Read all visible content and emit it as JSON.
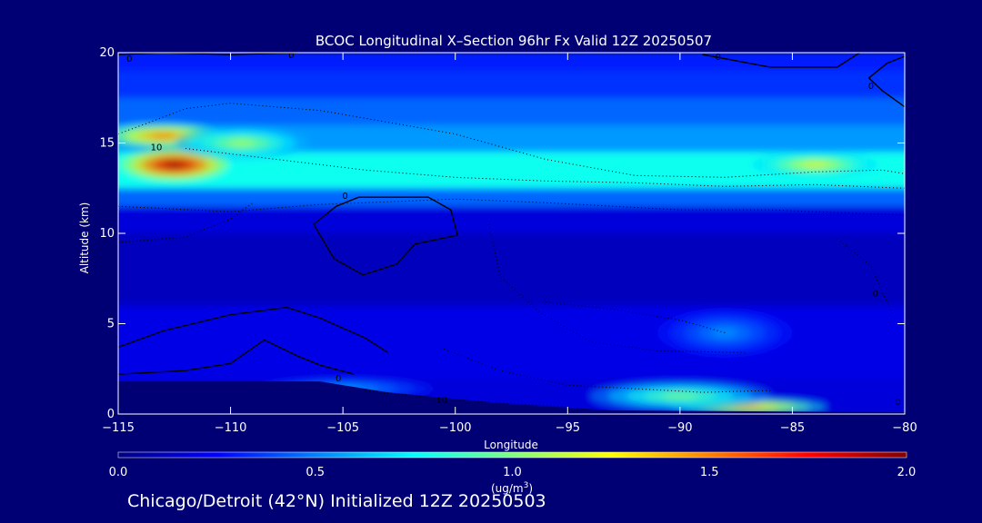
{
  "chart_data": {
    "type": "heatmap",
    "title": "BCOC Longitudinal X–Section 96hr  Fx Valid 12Z 20250507",
    "xlabel": "Longitude",
    "ylabel": "Altitude (km)",
    "xlim": [
      -115,
      -80
    ],
    "ylim": [
      0,
      20
    ],
    "x_ticks": [
      -115,
      -110,
      -105,
      -100,
      -95,
      -90,
      -85,
      -80
    ],
    "x_tick_labels": [
      "−115",
      "−110",
      "−105",
      "−100",
      "−95",
      "−90",
      "−85",
      "−80"
    ],
    "y_ticks": [
      0,
      5,
      10,
      15,
      20
    ],
    "y_tick_labels": [
      "0",
      "5",
      "10",
      "15",
      "20"
    ],
    "colorbar": {
      "min": 0.0,
      "max": 2.0,
      "ticks": [
        "0.0",
        "0.5",
        "1.0",
        "1.5",
        "2.0"
      ],
      "unit_prefix": "(ug/m",
      "unit_sup": "3",
      "unit_suffix": ")",
      "colormap": [
        "#000080",
        "#0000ff",
        "#0080ff",
        "#00ffff",
        "#80ff80",
        "#ffff00",
        "#ff8000",
        "#ff0000",
        "#800000"
      ]
    },
    "grid": false,
    "field_features": [
      {
        "lon": -112.5,
        "alt": 13.8,
        "value": 2.0,
        "sx": 2.4,
        "sy": 0.9
      },
      {
        "lon": -113.0,
        "alt": 15.4,
        "value": 1.55,
        "sx": 2.8,
        "sy": 0.7
      },
      {
        "lon": -109.5,
        "alt": 15.0,
        "value": 1.1,
        "sx": 3.0,
        "sy": 0.9
      },
      {
        "lon": -84.0,
        "alt": 13.8,
        "value": 1.25,
        "sx": 2.8,
        "sy": 0.7
      },
      {
        "lon": -87.0,
        "alt": 0.4,
        "value": 1.45,
        "sx": 3.5,
        "sy": 0.45
      },
      {
        "lon": -90.0,
        "alt": 1.0,
        "value": 1.0,
        "sx": 4.0,
        "sy": 0.8
      },
      {
        "lon": -88.0,
        "alt": 4.5,
        "value": 0.55,
        "sx": 3.0,
        "sy": 1.3
      },
      {
        "lon": -105.0,
        "alt": 1.4,
        "value": 0.6,
        "sx": 4.0,
        "sy": 0.6
      }
    ],
    "contour_labels": [
      {
        "text": "0",
        "lon": -114.5,
        "alt": 19.7
      },
      {
        "text": "0",
        "lon": -107.3,
        "alt": 19.9
      },
      {
        "text": "0",
        "lon": -88.3,
        "alt": 19.8
      },
      {
        "text": "0",
        "lon": -81.5,
        "alt": 18.2
      },
      {
        "text": "10",
        "lon": -113.3,
        "alt": 14.8
      },
      {
        "text": "0",
        "lon": -104.9,
        "alt": 12.1
      },
      {
        "text": "0",
        "lon": -105.2,
        "alt": 2.0
      },
      {
        "text": "10",
        "lon": -100.6,
        "alt": 0.8
      },
      {
        "text": "0",
        "lon": -81.3,
        "alt": 6.7
      },
      {
        "text": "0",
        "lon": -80.3,
        "alt": 0.7
      }
    ]
  },
  "footer": {
    "text": "Chicago/Detroit (42°N) Initialized 12Z 20250503"
  }
}
